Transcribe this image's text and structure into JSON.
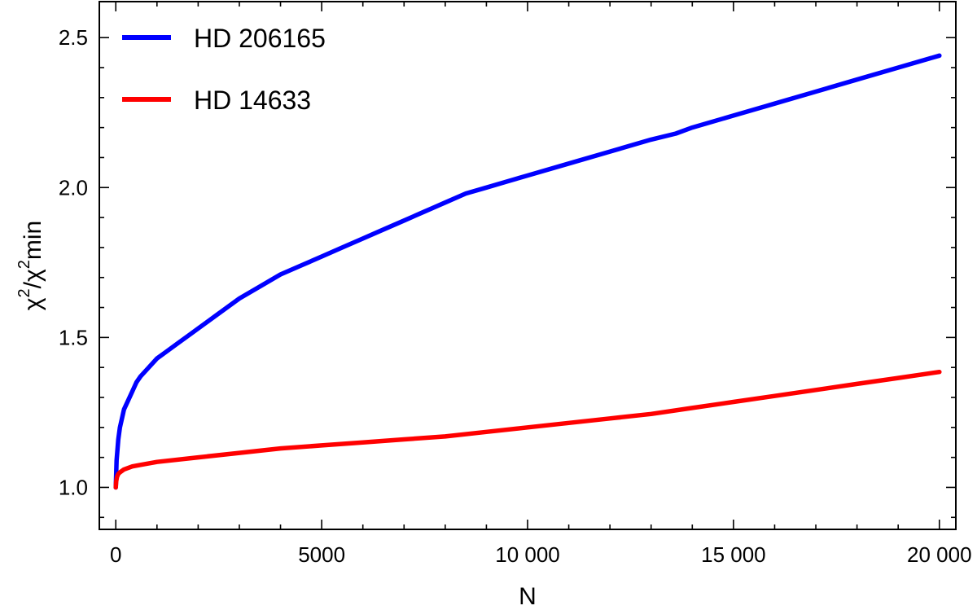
{
  "chart_data": {
    "type": "line",
    "xlabel": "N",
    "ylabel": {
      "chi": "χ",
      "sup": "2",
      "sub": "min"
    },
    "xlim": [
      -400,
      20400
    ],
    "ylim": [
      0.86,
      2.62
    ],
    "x_ticks": [
      0,
      5000,
      10000,
      15000,
      20000
    ],
    "x_tick_labels": [
      "0",
      "5000",
      "10 000",
      "15 000",
      "20 000"
    ],
    "y_ticks": [
      1.0,
      1.5,
      2.0,
      2.5
    ],
    "y_tick_labels": [
      "1.0",
      "1.5",
      "2.0",
      "2.5"
    ],
    "legend_position": "top-left",
    "grid": false,
    "series": [
      {
        "name": "HD 206165",
        "color": "#0000ff",
        "x": [
          0,
          20,
          60,
          100,
          150,
          200,
          300,
          400,
          500,
          600,
          800,
          1000,
          1200,
          1500,
          1800,
          2000,
          2500,
          3000,
          3500,
          4000,
          4500,
          5000,
          5500,
          6000,
          6500,
          7000,
          7500,
          8000,
          8500,
          9000,
          9500,
          10000,
          11000,
          12000,
          13000,
          13600,
          14000,
          15000,
          16000,
          17000,
          18000,
          19000,
          20000
        ],
        "y": [
          1.0,
          1.09,
          1.16,
          1.2,
          1.23,
          1.26,
          1.29,
          1.32,
          1.35,
          1.37,
          1.4,
          1.43,
          1.45,
          1.48,
          1.51,
          1.53,
          1.58,
          1.63,
          1.67,
          1.71,
          1.74,
          1.77,
          1.8,
          1.83,
          1.86,
          1.89,
          1.92,
          1.95,
          1.98,
          2.0,
          2.02,
          2.04,
          2.08,
          2.12,
          2.16,
          2.18,
          2.2,
          2.24,
          2.28,
          2.32,
          2.36,
          2.4,
          2.44
        ]
      },
      {
        "name": "HD 14633",
        "color": "#ff0000",
        "x": [
          0,
          10,
          30,
          60,
          100,
          200,
          400,
          600,
          1000,
          2000,
          3000,
          4000,
          5000,
          6000,
          7000,
          8000,
          9000,
          10000,
          11000,
          12000,
          13000,
          14000,
          15000,
          16000,
          17000,
          18000,
          19000,
          20000
        ],
        "y": [
          1.0,
          1.02,
          1.035,
          1.045,
          1.05,
          1.06,
          1.07,
          1.075,
          1.085,
          1.1,
          1.115,
          1.13,
          1.14,
          1.15,
          1.16,
          1.17,
          1.185,
          1.2,
          1.215,
          1.23,
          1.245,
          1.265,
          1.285,
          1.305,
          1.325,
          1.345,
          1.365,
          1.385
        ]
      }
    ]
  }
}
